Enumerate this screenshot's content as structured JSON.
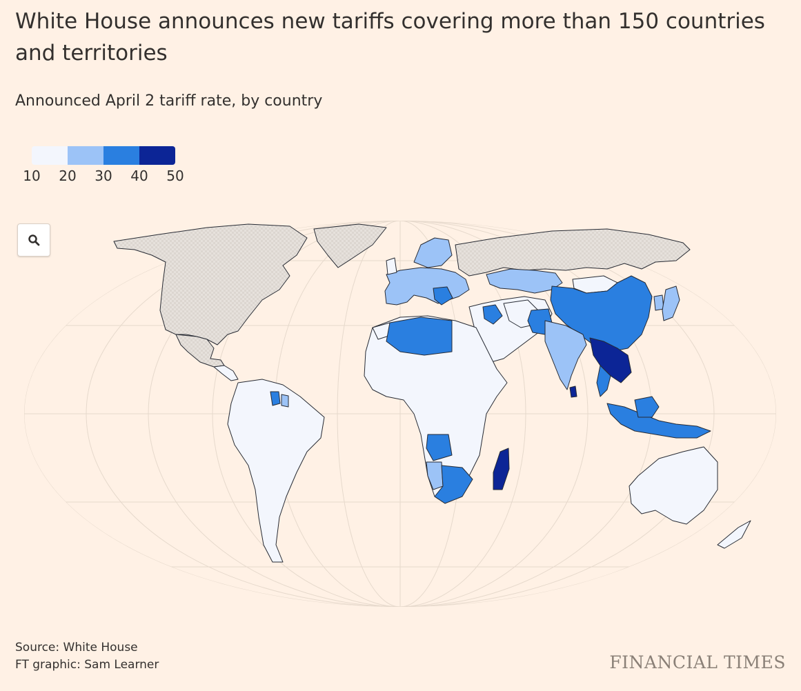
{
  "header": {
    "title": "White House announces new tariffs covering more than 150 countries and territories",
    "subtitle": "Announced April 2 tariff rate, by country"
  },
  "legend": {
    "ticks": [
      "10",
      "20",
      "30",
      "40",
      "50"
    ],
    "colors": [
      "#f3f6fd",
      "#9cc3f7",
      "#2a7fe0",
      "#0c2596"
    ]
  },
  "map": {
    "zoom_icon": "search-icon",
    "colors": {
      "background": "#fff1e5",
      "no_data": "#e6e1dc",
      "border": "#262a33",
      "graticule": "#e6d9cc"
    },
    "regions": [
      {
        "name": "North America (USA, Canada, Greenland)",
        "bin": "no-data"
      },
      {
        "name": "Mexico",
        "bin": "no-data"
      },
      {
        "name": "Central America and Caribbean",
        "bin": "10-20"
      },
      {
        "name": "South America",
        "bin": "10-20"
      },
      {
        "name": "Guyana",
        "bin": "30-40"
      },
      {
        "name": "Europe",
        "bin": "20-30"
      },
      {
        "name": "Balkans",
        "bin": "30-40"
      },
      {
        "name": "Russia",
        "bin": "no-data"
      },
      {
        "name": "Kazakhstan",
        "bin": "20-30"
      },
      {
        "name": "Mongolia",
        "bin": "10-20"
      },
      {
        "name": "China",
        "bin": "30-40"
      },
      {
        "name": "Korea",
        "bin": "20-30"
      },
      {
        "name": "Japan",
        "bin": "20-30"
      },
      {
        "name": "India",
        "bin": "20-30"
      },
      {
        "name": "Pakistan",
        "bin": "30-40"
      },
      {
        "name": "Sri Lanka",
        "bin": "40-50"
      },
      {
        "name": "Myanmar, Laos, Vietnam, Cambodia",
        "bin": "40-50"
      },
      {
        "name": "Thailand",
        "bin": "30-40"
      },
      {
        "name": "Indonesia and Malaysia",
        "bin": "30-40"
      },
      {
        "name": "Middle East",
        "bin": "10-20"
      },
      {
        "name": "Syria and Iraq",
        "bin": "30-40"
      },
      {
        "name": "Algeria and Libya",
        "bin": "30-40"
      },
      {
        "name": "Morocco",
        "bin": "10-20"
      },
      {
        "name": "Africa",
        "bin": "10-20"
      },
      {
        "name": "Angola and Zimbabwe",
        "bin": "30-40"
      },
      {
        "name": "Namibia",
        "bin": "20-30"
      },
      {
        "name": "Botswana and South Africa",
        "bin": "30-40"
      },
      {
        "name": "Madagascar",
        "bin": "40-50"
      },
      {
        "name": "Australia and New Zealand",
        "bin": "10-20"
      }
    ]
  },
  "footer": {
    "source": "Source: White House",
    "credit": "FT graphic: Sam Learner",
    "brand": "FINANCIAL TIMES"
  }
}
